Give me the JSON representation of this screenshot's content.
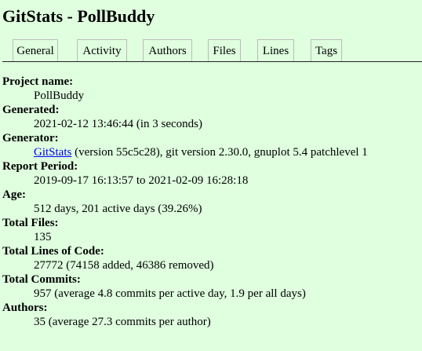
{
  "page": {
    "title": "GitStats - PollBuddy"
  },
  "nav": {
    "tabs": [
      "General",
      "Activity",
      "Authors",
      "Files",
      "Lines",
      "Tags"
    ]
  },
  "info": {
    "project_name_label": "Project name:",
    "project_name": "PollBuddy",
    "generated_label": "Generated:",
    "generated": "2021-02-12 13:46:44 (in 3 seconds)",
    "generator_label": "Generator:",
    "generator_link": "GitStats",
    "generator_rest": " (version 55c5c28), git version 2.30.0, gnuplot 5.4 patchlevel 1",
    "report_period_label": "Report Period:",
    "report_period": "2019-09-17 16:13:57 to 2021-02-09 16:28:18",
    "age_label": "Age:",
    "age": "512 days, 201 active days (39.26%)",
    "total_files_label": "Total Files:",
    "total_files": "135",
    "total_loc_label": "Total Lines of Code:",
    "total_loc": "27772 (74158 added, 46386 removed)",
    "total_commits_label": "Total Commits:",
    "total_commits": "957 (average 4.8 commits per active day, 1.9 per all days)",
    "authors_label": "Authors:",
    "authors": "35 (average 27.3 commits per author)"
  }
}
